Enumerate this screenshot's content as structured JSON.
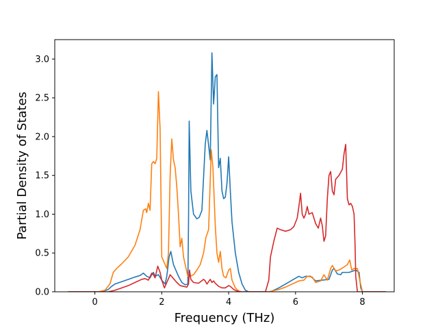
{
  "chart_data": {
    "type": "line",
    "title": "",
    "xlabel": "Frequency (THz)",
    "ylabel": "Partial Density of States",
    "xlim": [
      -1.2,
      8.95
    ],
    "ylim": [
      0,
      3.25
    ],
    "x_ticks": [
      0,
      2,
      4,
      6,
      8
    ],
    "x_tick_labels": [
      "0",
      "2",
      "4",
      "6",
      "8"
    ],
    "y_ticks": [
      0,
      0.5,
      1.0,
      1.5,
      2.0,
      2.5,
      3.0
    ],
    "y_tick_labels": [
      "0.0",
      "0.5",
      "1.0",
      "1.5",
      "2.0",
      "2.5",
      "3.0"
    ],
    "grid": false,
    "legend": "none",
    "series": [
      {
        "color": "#1f77b4",
        "points": [
          [
            -0.8,
            0
          ],
          [
            0.2,
            0
          ],
          [
            0.4,
            0.03
          ],
          [
            0.5,
            0.07
          ],
          [
            0.6,
            0.1
          ],
          [
            0.8,
            0.13
          ],
          [
            1.0,
            0.16
          ],
          [
            1.2,
            0.19
          ],
          [
            1.35,
            0.21
          ],
          [
            1.45,
            0.24
          ],
          [
            1.55,
            0.2
          ],
          [
            1.65,
            0.18
          ],
          [
            1.7,
            0.22
          ],
          [
            1.75,
            0.25
          ],
          [
            1.8,
            0.2
          ],
          [
            1.9,
            0.22
          ],
          [
            2.0,
            0.15
          ],
          [
            2.1,
            0.1
          ],
          [
            2.15,
            0.2
          ],
          [
            2.22,
            0.45
          ],
          [
            2.27,
            0.52
          ],
          [
            2.35,
            0.35
          ],
          [
            2.5,
            0.2
          ],
          [
            2.6,
            0.12
          ],
          [
            2.7,
            0.09
          ],
          [
            2.78,
            0.1
          ],
          [
            2.8,
            0.9
          ],
          [
            2.82,
            2.2
          ],
          [
            2.87,
            1.3
          ],
          [
            2.95,
            1.0
          ],
          [
            3.05,
            0.94
          ],
          [
            3.12,
            0.96
          ],
          [
            3.2,
            1.05
          ],
          [
            3.3,
            1.9
          ],
          [
            3.35,
            2.08
          ],
          [
            3.45,
            1.7
          ],
          [
            3.5,
            3.08
          ],
          [
            3.55,
            2.42
          ],
          [
            3.6,
            2.77
          ],
          [
            3.65,
            2.8
          ],
          [
            3.7,
            1.6
          ],
          [
            3.75,
            1.72
          ],
          [
            3.8,
            1.3
          ],
          [
            3.85,
            1.2
          ],
          [
            3.9,
            1.22
          ],
          [
            3.95,
            1.4
          ],
          [
            4.0,
            1.74
          ],
          [
            4.05,
            1.3
          ],
          [
            4.1,
            0.9
          ],
          [
            4.2,
            0.5
          ],
          [
            4.3,
            0.25
          ],
          [
            4.4,
            0.1
          ],
          [
            4.5,
            0.02
          ],
          [
            4.6,
            0
          ],
          [
            5.2,
            0
          ],
          [
            5.3,
            0.01
          ],
          [
            5.5,
            0.05
          ],
          [
            5.7,
            0.1
          ],
          [
            5.9,
            0.15
          ],
          [
            6.1,
            0.2
          ],
          [
            6.2,
            0.18
          ],
          [
            6.3,
            0.2
          ],
          [
            6.45,
            0.2
          ],
          [
            6.55,
            0.16
          ],
          [
            6.6,
            0.14
          ],
          [
            6.8,
            0.15
          ],
          [
            7.0,
            0.16
          ],
          [
            7.1,
            0.28
          ],
          [
            7.15,
            0.3
          ],
          [
            7.25,
            0.23
          ],
          [
            7.35,
            0.22
          ],
          [
            7.4,
            0.25
          ],
          [
            7.6,
            0.25
          ],
          [
            7.8,
            0.28
          ],
          [
            7.9,
            0.25
          ],
          [
            7.95,
            0.05
          ],
          [
            8.0,
            0
          ],
          [
            8.7,
            0
          ]
        ]
      },
      {
        "color": "#ff7f0e",
        "points": [
          [
            -0.8,
            0
          ],
          [
            0.1,
            0
          ],
          [
            0.3,
            0.02
          ],
          [
            0.45,
            0.1
          ],
          [
            0.55,
            0.25
          ],
          [
            0.65,
            0.3
          ],
          [
            0.8,
            0.36
          ],
          [
            1.0,
            0.45
          ],
          [
            1.2,
            0.6
          ],
          [
            1.35,
            0.8
          ],
          [
            1.45,
            1.05
          ],
          [
            1.52,
            1.07
          ],
          [
            1.55,
            1.02
          ],
          [
            1.6,
            1.14
          ],
          [
            1.65,
            1.05
          ],
          [
            1.7,
            1.65
          ],
          [
            1.75,
            1.68
          ],
          [
            1.8,
            1.65
          ],
          [
            1.85,
            1.72
          ],
          [
            1.9,
            2.58
          ],
          [
            1.95,
            2.1
          ],
          [
            2.0,
            0.45
          ],
          [
            2.05,
            0.4
          ],
          [
            2.1,
            0.35
          ],
          [
            2.15,
            0.3
          ],
          [
            2.2,
            0.5
          ],
          [
            2.25,
            1.5
          ],
          [
            2.3,
            1.97
          ],
          [
            2.35,
            1.7
          ],
          [
            2.4,
            1.6
          ],
          [
            2.45,
            1.35
          ],
          [
            2.5,
            1.0
          ],
          [
            2.55,
            0.58
          ],
          [
            2.6,
            0.69
          ],
          [
            2.65,
            0.45
          ],
          [
            2.7,
            0.35
          ],
          [
            2.78,
            0.2
          ],
          [
            2.85,
            0.2
          ],
          [
            2.95,
            0.22
          ],
          [
            3.05,
            0.28
          ],
          [
            3.15,
            0.35
          ],
          [
            3.25,
            0.5
          ],
          [
            3.32,
            0.7
          ],
          [
            3.4,
            0.8
          ],
          [
            3.48,
            1.83
          ],
          [
            3.53,
            1.6
          ],
          [
            3.6,
            0.85
          ],
          [
            3.65,
            0.5
          ],
          [
            3.7,
            0.38
          ],
          [
            3.75,
            0.52
          ],
          [
            3.8,
            0.3
          ],
          [
            3.85,
            0.2
          ],
          [
            3.92,
            0.18
          ],
          [
            4.0,
            0.28
          ],
          [
            4.05,
            0.3
          ],
          [
            4.1,
            0.15
          ],
          [
            4.2,
            0.05
          ],
          [
            4.3,
            0.01
          ],
          [
            4.4,
            0
          ],
          [
            5.2,
            0
          ],
          [
            5.3,
            0.01
          ],
          [
            5.5,
            0.03
          ],
          [
            5.7,
            0.06
          ],
          [
            5.9,
            0.1
          ],
          [
            6.1,
            0.14
          ],
          [
            6.25,
            0.15
          ],
          [
            6.35,
            0.2
          ],
          [
            6.5,
            0.19
          ],
          [
            6.6,
            0.12
          ],
          [
            6.75,
            0.14
          ],
          [
            6.85,
            0.22
          ],
          [
            6.95,
            0.15
          ],
          [
            7.05,
            0.3
          ],
          [
            7.1,
            0.34
          ],
          [
            7.2,
            0.27
          ],
          [
            7.3,
            0.28
          ],
          [
            7.45,
            0.32
          ],
          [
            7.55,
            0.35
          ],
          [
            7.62,
            0.41
          ],
          [
            7.68,
            0.28
          ],
          [
            7.75,
            0.3
          ],
          [
            7.85,
            0.3
          ],
          [
            7.92,
            0.15
          ],
          [
            8.0,
            0
          ],
          [
            8.7,
            0
          ]
        ]
      },
      {
        "color": "#d62728",
        "points": [
          [
            -0.8,
            0
          ],
          [
            0.4,
            0
          ],
          [
            0.6,
            0.02
          ],
          [
            0.8,
            0.05
          ],
          [
            1.0,
            0.08
          ],
          [
            1.2,
            0.12
          ],
          [
            1.4,
            0.16
          ],
          [
            1.5,
            0.17
          ],
          [
            1.6,
            0.15
          ],
          [
            1.7,
            0.24
          ],
          [
            1.75,
            0.22
          ],
          [
            1.8,
            0.18
          ],
          [
            1.88,
            0.33
          ],
          [
            1.95,
            0.25
          ],
          [
            2.0,
            0.15
          ],
          [
            2.08,
            0.05
          ],
          [
            2.15,
            0.12
          ],
          [
            2.25,
            0.22
          ],
          [
            2.35,
            0.17
          ],
          [
            2.45,
            0.12
          ],
          [
            2.55,
            0.08
          ],
          [
            2.65,
            0.07
          ],
          [
            2.75,
            0.06
          ],
          [
            2.8,
            0.1
          ],
          [
            2.83,
            0.28
          ],
          [
            2.87,
            0.16
          ],
          [
            2.95,
            0.12
          ],
          [
            3.1,
            0.11
          ],
          [
            3.25,
            0.16
          ],
          [
            3.3,
            0.14
          ],
          [
            3.35,
            0.1
          ],
          [
            3.45,
            0.16
          ],
          [
            3.5,
            0.12
          ],
          [
            3.55,
            0.14
          ],
          [
            3.6,
            0.11
          ],
          [
            3.7,
            0.07
          ],
          [
            3.8,
            0.05
          ],
          [
            3.9,
            0.05
          ],
          [
            4.0,
            0.08
          ],
          [
            4.05,
            0.07
          ],
          [
            4.15,
            0.03
          ],
          [
            4.25,
            0.01
          ],
          [
            4.35,
            0
          ],
          [
            5.1,
            0
          ],
          [
            5.2,
            0.15
          ],
          [
            5.25,
            0.45
          ],
          [
            5.35,
            0.65
          ],
          [
            5.45,
            0.82
          ],
          [
            5.55,
            0.8
          ],
          [
            5.7,
            0.78
          ],
          [
            5.85,
            0.8
          ],
          [
            5.95,
            0.84
          ],
          [
            6.05,
            0.95
          ],
          [
            6.1,
            1.1
          ],
          [
            6.15,
            1.27
          ],
          [
            6.2,
            1.0
          ],
          [
            6.25,
            0.95
          ],
          [
            6.3,
            1.0
          ],
          [
            6.35,
            1.1
          ],
          [
            6.4,
            1.0
          ],
          [
            6.5,
            1.02
          ],
          [
            6.55,
            0.95
          ],
          [
            6.6,
            0.88
          ],
          [
            6.68,
            0.82
          ],
          [
            6.75,
            0.95
          ],
          [
            6.8,
            0.85
          ],
          [
            6.85,
            0.65
          ],
          [
            6.9,
            0.72
          ],
          [
            6.95,
            1.2
          ],
          [
            7.0,
            1.5
          ],
          [
            7.05,
            1.55
          ],
          [
            7.1,
            1.3
          ],
          [
            7.15,
            1.25
          ],
          [
            7.2,
            1.45
          ],
          [
            7.3,
            1.5
          ],
          [
            7.4,
            1.58
          ],
          [
            7.45,
            1.78
          ],
          [
            7.5,
            1.9
          ],
          [
            7.55,
            1.2
          ],
          [
            7.6,
            1.12
          ],
          [
            7.65,
            1.14
          ],
          [
            7.7,
            1.1
          ],
          [
            7.75,
            1.0
          ],
          [
            7.78,
            0.6
          ],
          [
            7.8,
            0.2
          ],
          [
            7.85,
            0
          ],
          [
            8.7,
            0
          ]
        ]
      }
    ]
  }
}
